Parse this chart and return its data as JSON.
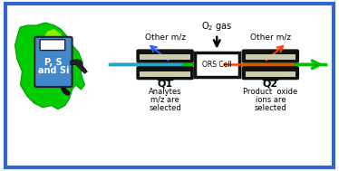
{
  "fig_width": 3.74,
  "fig_height": 1.89,
  "dpi": 100,
  "border_color": "#3366cc",
  "background_color": "#ffffff",
  "brazil_color_main": "#00cc00",
  "brazil_color_highlight": "#ccff00",
  "pump_color": "#4488cc",
  "pump_text": [
    "P, S",
    "and Si"
  ],
  "pump_text_color": "#ffffff",
  "q1_label": "Q1",
  "q2_label": "Q2",
  "q1_text": [
    "Analytes",
    "m/z are",
    "selected"
  ],
  "q2_text": [
    "Product  oxide",
    "ions are",
    "selected"
  ],
  "other_mz_left": "Other m/z",
  "other_mz_right": "Other m/z",
  "ors_label": "ORS Cell",
  "beam_green_color": "#00bb00",
  "beam_blue_color": "#3399ff",
  "beam_red_color": "#ff4400",
  "arrow_blue_color": "#2266ff",
  "arrow_red_color": "#ff4400",
  "text_color": "#000000",
  "q_label_color": "#000000"
}
